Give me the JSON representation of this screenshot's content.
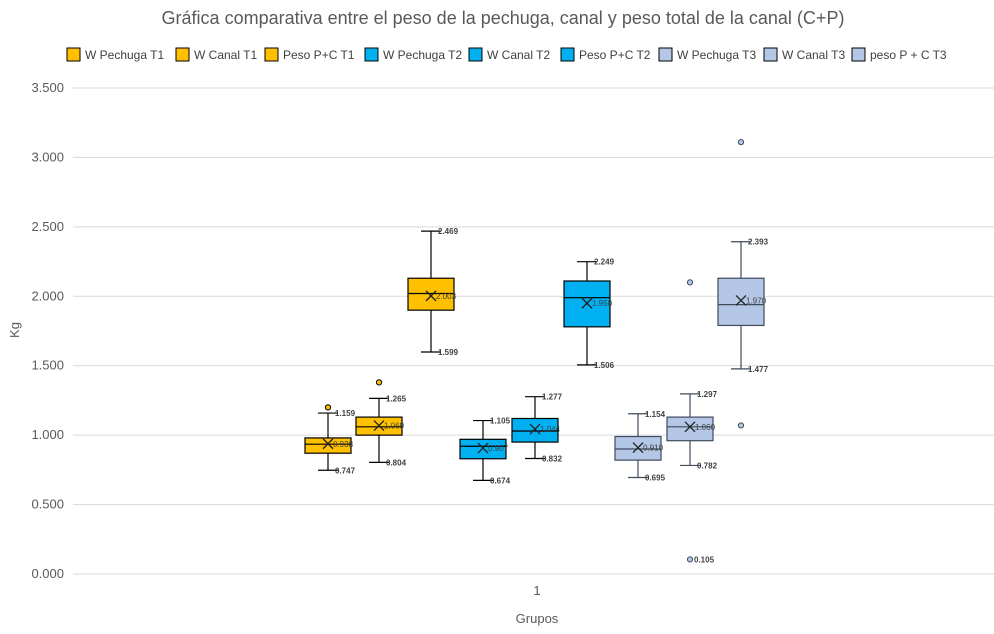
{
  "chart_data": {
    "type": "box",
    "title": "Gráfica comparativa entre el peso de la pechuga, canal y peso total de la canal (C+P)",
    "xlabel": "Grupos",
    "ylabel": "Kg",
    "categories": [
      "1"
    ],
    "ylim": [
      0,
      3.5
    ],
    "yticks": [
      0,
      0.5,
      1,
      1.5,
      2,
      2.5,
      3,
      3.5
    ],
    "ytick_labels": [
      "0.000",
      "0.500",
      "1.000",
      "1.500",
      "2.000",
      "2.500",
      "3.000",
      "3.500"
    ],
    "grid": true,
    "legend_position": "top",
    "series": [
      {
        "name": "W Pechuga T1",
        "color": "#FFC000",
        "min": 0.747,
        "q1": 0.87,
        "median": 0.935,
        "q3": 0.98,
        "max": 1.159,
        "mean": 0.938,
        "mean_label": "0.938",
        "outliers": [
          1.2
        ],
        "min_label": "0.747",
        "max_label": "1.159"
      },
      {
        "name": "W Canal T1",
        "color": "#FFC000",
        "min": 0.804,
        "q1": 1.0,
        "median": 1.06,
        "q3": 1.13,
        "max": 1.265,
        "mean": 1.069,
        "mean_label": "1.069",
        "outliers": [
          1.38
        ],
        "min_label": "0.804",
        "max_label": "1.265"
      },
      {
        "name": "Peso P+C  T1",
        "color": "#FFC000",
        "min": 1.599,
        "q1": 1.9,
        "median": 2.02,
        "q3": 2.13,
        "max": 2.469,
        "mean": 2.003,
        "mean_label": "2.003",
        "outliers": [],
        "min_label": "1.599",
        "max_label": "2.469"
      },
      {
        "name": "W Pechuga T2",
        "color": "#00B0F0",
        "min": 0.674,
        "q1": 0.83,
        "median": 0.92,
        "q3": 0.97,
        "max": 1.105,
        "mean": 0.907,
        "mean_label": "0.907",
        "outliers": [],
        "min_label": "0.674",
        "max_label": "1.105"
      },
      {
        "name": "W Canal T2",
        "color": "#00B0F0",
        "min": 0.832,
        "q1": 0.95,
        "median": 1.03,
        "q3": 1.12,
        "max": 1.277,
        "mean": 1.044,
        "mean_label": "1.044",
        "outliers": [],
        "min_label": "0.832",
        "max_label": "1.277"
      },
      {
        "name": "Peso P+C  T2",
        "color": "#00B0F0",
        "min": 1.506,
        "q1": 1.78,
        "median": 1.99,
        "q3": 2.11,
        "max": 2.249,
        "mean": 1.95,
        "mean_label": "1.950",
        "outliers": [],
        "min_label": "1.506",
        "max_label": "2.249"
      },
      {
        "name": "W Pechuga T3",
        "color": "#B4C7E7",
        "min": 0.695,
        "q1": 0.82,
        "median": 0.9,
        "q3": 0.99,
        "max": 1.154,
        "mean": 0.91,
        "mean_label": "0.910",
        "outliers": [],
        "min_label": "0.695",
        "max_label": "1.154"
      },
      {
        "name": "W Canal T3",
        "color": "#B4C7E7",
        "min": 0.782,
        "q1": 0.96,
        "median": 1.06,
        "q3": 1.13,
        "max": 1.297,
        "mean": 1.06,
        "mean_label": "1.060",
        "outliers": [
          2.1,
          0.105
        ],
        "min_label": "0.782",
        "max_label": "1.297",
        "outlier_label": "0.105"
      },
      {
        "name": "peso P + C  T3",
        "color": "#B4C7E7",
        "min": 1.477,
        "q1": 1.79,
        "median": 1.94,
        "q3": 2.13,
        "max": 2.393,
        "mean": 1.97,
        "mean_label": "1.970",
        "outliers": [
          3.11,
          1.07
        ],
        "min_label": "1.477",
        "max_label": "2.393"
      }
    ]
  }
}
